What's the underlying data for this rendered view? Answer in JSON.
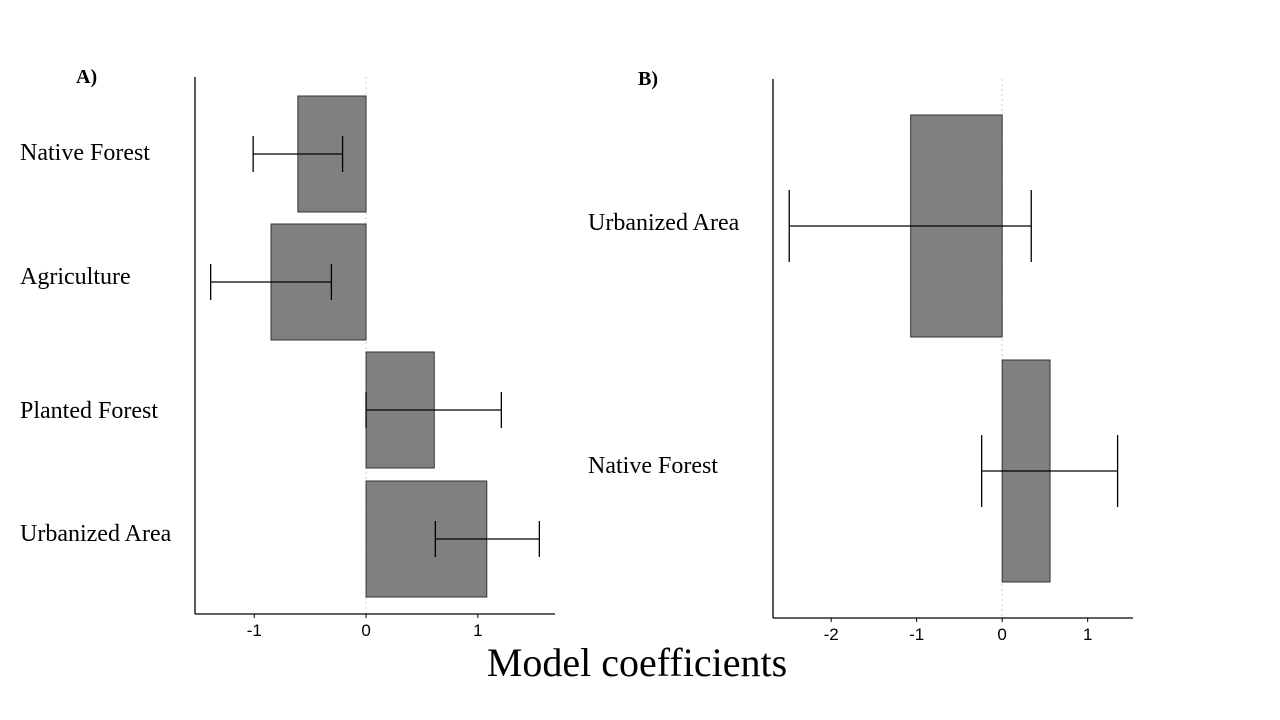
{
  "xlabel": "Model coefficients",
  "colors": {
    "bar_fill": "#808080",
    "bar_stroke": "#333333",
    "axis": "#000000",
    "zero_line": "#cccccc"
  },
  "chart_data": [
    {
      "type": "bar",
      "orientation": "horizontal",
      "panel_label": "A)",
      "categories": [
        "Native Forest",
        "Agriculture",
        "Planted Forest",
        "Urbanized Area"
      ],
      "values": [
        -0.61,
        -0.85,
        0.61,
        1.08
      ],
      "error_low": [
        -1.01,
        -1.39,
        0.0,
        0.62
      ],
      "error_high": [
        -0.21,
        -0.31,
        1.21,
        1.55
      ],
      "xlim": [
        -1.53,
        1.69
      ],
      "xticks": [
        -1,
        0,
        1
      ],
      "xtick_labels": [
        "-1",
        "0",
        "1"
      ],
      "zero_line": true,
      "grid": false,
      "legend": "none"
    },
    {
      "type": "bar",
      "orientation": "horizontal",
      "panel_label": "B)",
      "categories": [
        "Urbanized Area",
        "Native Forest"
      ],
      "values": [
        -1.07,
        0.56
      ],
      "error_low": [
        -2.49,
        -0.24
      ],
      "error_high": [
        0.34,
        1.35
      ],
      "xlim": [
        -2.68,
        1.53
      ],
      "xticks": [
        -2,
        -1,
        0,
        1
      ],
      "xtick_labels": [
        "-2",
        "-1",
        "0",
        "1"
      ],
      "zero_line": true,
      "grid": false,
      "legend": "none"
    }
  ]
}
